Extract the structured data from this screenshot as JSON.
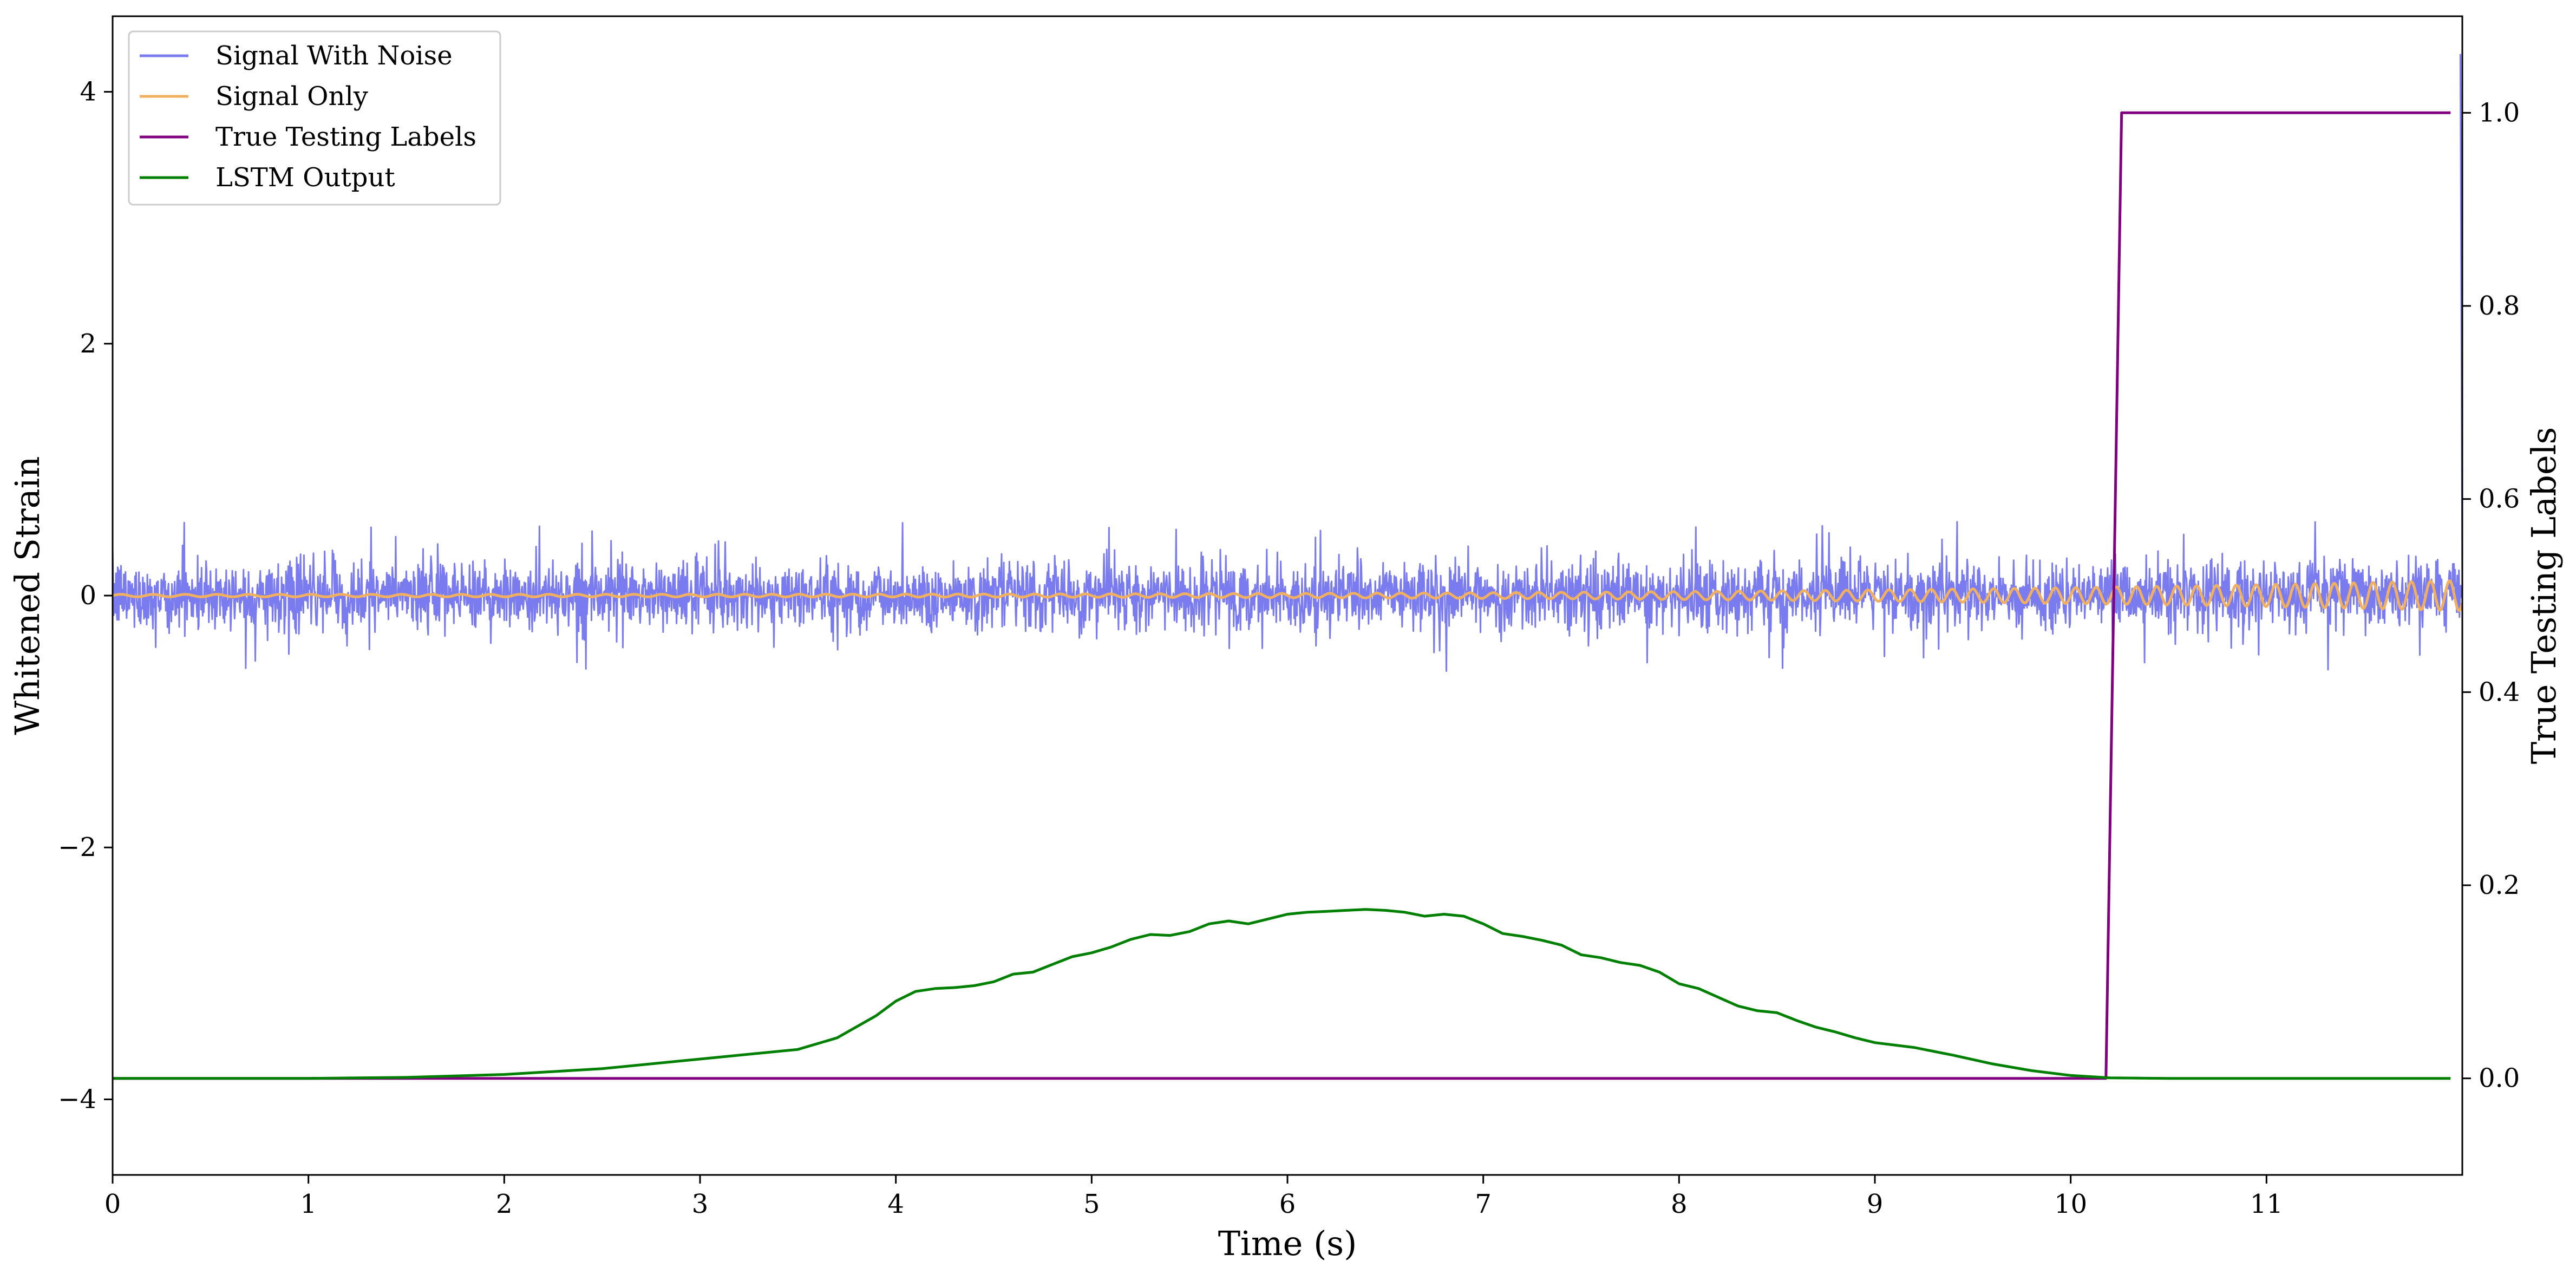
{
  "chart_data": {
    "type": "line",
    "title": "",
    "xlabel": "Time (s)",
    "ylabel": "Whitened Strain",
    "y2label": "True Testing Labels",
    "xlim": [
      0,
      12
    ],
    "ylim": [
      -4.6,
      4.6
    ],
    "y2lim": [
      -0.1,
      1.1
    ],
    "xticks": [
      0,
      1,
      2,
      3,
      4,
      5,
      6,
      7,
      8,
      9,
      10,
      11
    ],
    "xtick_labels": [
      "0",
      "1",
      "2",
      "3",
      "4",
      "5",
      "6",
      "7",
      "8",
      "9",
      "10",
      "11"
    ],
    "yticks": [
      -4,
      -2,
      0,
      2,
      4
    ],
    "ytick_labels": [
      "−4",
      "−2",
      "0",
      "2",
      "4"
    ],
    "y2ticks": [
      0.0,
      0.2,
      0.4,
      0.6,
      0.8,
      1.0
    ],
    "y2tick_labels": [
      "0.0",
      "0.2",
      "0.4",
      "0.6",
      "0.8",
      "1.0"
    ],
    "grid": false,
    "legend_position": "top-left",
    "series": [
      {
        "name": "Signal With Noise",
        "axis": "left",
        "color": "#7b7bf0",
        "kind": "noise",
        "amplitude": 0.25,
        "spike_max": 0.65,
        "spike_min": -0.72,
        "x_range": [
          0,
          12
        ]
      },
      {
        "name": "Signal Only",
        "axis": "left",
        "color": "#f0b060",
        "kind": "chirp",
        "amplitude_start": 0.01,
        "amplitude_end": 0.12,
        "x_range": [
          0,
          12
        ]
      },
      {
        "name": "True Testing Labels",
        "axis": "right",
        "color": "#800080",
        "x": [
          0,
          10.18,
          10.26,
          11.94
        ],
        "values": [
          0,
          0,
          1,
          1
        ]
      },
      {
        "name": "LSTM Output",
        "axis": "right",
        "color": "#008000",
        "x": [
          0,
          1,
          1.5,
          2,
          2.5,
          3,
          3.5,
          3.7,
          3.9,
          4.0,
          4.1,
          4.2,
          4.3,
          4.4,
          4.5,
          4.6,
          4.7,
          4.8,
          4.9,
          5.0,
          5.1,
          5.2,
          5.3,
          5.4,
          5.5,
          5.6,
          5.7,
          5.8,
          5.9,
          6.0,
          6.1,
          6.2,
          6.3,
          6.4,
          6.5,
          6.6,
          6.7,
          6.8,
          6.9,
          7.0,
          7.1,
          7.2,
          7.3,
          7.4,
          7.5,
          7.6,
          7.7,
          7.8,
          7.9,
          8.0,
          8.1,
          8.2,
          8.3,
          8.4,
          8.5,
          8.6,
          8.7,
          8.8,
          8.9,
          9.0,
          9.2,
          9.4,
          9.6,
          9.8,
          10.0,
          10.2,
          10.5,
          11.0,
          11.94
        ],
        "values": [
          0.0,
          0.0,
          0.001,
          0.004,
          0.01,
          0.02,
          0.03,
          0.042,
          0.065,
          0.08,
          0.09,
          0.093,
          0.094,
          0.096,
          0.1,
          0.108,
          0.11,
          0.118,
          0.126,
          0.13,
          0.136,
          0.144,
          0.149,
          0.148,
          0.152,
          0.16,
          0.163,
          0.16,
          0.165,
          0.17,
          0.172,
          0.173,
          0.174,
          0.175,
          0.174,
          0.172,
          0.168,
          0.17,
          0.168,
          0.16,
          0.15,
          0.147,
          0.143,
          0.138,
          0.128,
          0.125,
          0.12,
          0.117,
          0.11,
          0.098,
          0.093,
          0.084,
          0.075,
          0.07,
          0.068,
          0.06,
          0.053,
          0.048,
          0.042,
          0.037,
          0.032,
          0.024,
          0.015,
          0.008,
          0.003,
          0.0005,
          0.0,
          0.0,
          0.0
        ]
      }
    ]
  }
}
